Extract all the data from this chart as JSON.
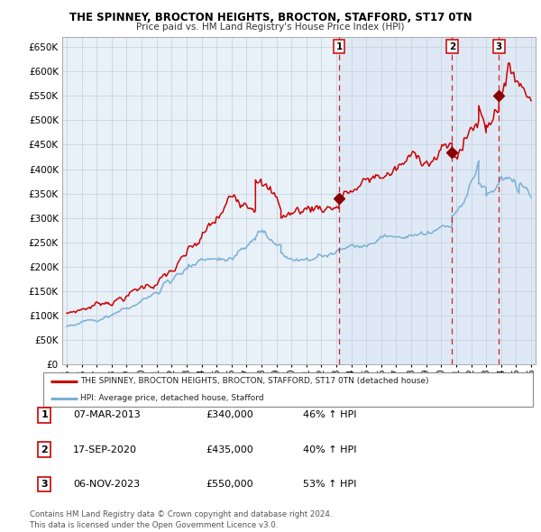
{
  "title": "THE SPINNEY, BROCTON HEIGHTS, BROCTON, STAFFORD, ST17 0TN",
  "subtitle": "Price paid vs. HM Land Registry's House Price Index (HPI)",
  "legend_line1": "THE SPINNEY, BROCTON HEIGHTS, BROCTON, STAFFORD, ST17 0TN (detached house)",
  "legend_line2": "HPI: Average price, detached house, Stafford",
  "sale_labels": [
    "1",
    "2",
    "3"
  ],
  "sale_dates": [
    2013.18,
    2020.72,
    2023.85
  ],
  "sale_prices": [
    340000,
    435000,
    550000
  ],
  "footer1": "Contains HM Land Registry data © Crown copyright and database right 2024.",
  "footer2": "This data is licensed under the Open Government Licence v3.0.",
  "red_color": "#cc0000",
  "blue_color": "#7ab0d4",
  "bg_color": "#e8f0f8",
  "grid_color": "#c8d4e0",
  "outer_bg": "#ffffff",
  "ylim": [
    0,
    670000
  ],
  "xlim": [
    1994.7,
    2026.3
  ],
  "yticks": [
    0,
    50000,
    100000,
    150000,
    200000,
    250000,
    300000,
    350000,
    400000,
    450000,
    500000,
    550000,
    600000,
    650000
  ],
  "xticks": [
    1995,
    1996,
    1997,
    1998,
    1999,
    2000,
    2001,
    2002,
    2003,
    2004,
    2005,
    2006,
    2007,
    2008,
    2009,
    2010,
    2011,
    2012,
    2013,
    2014,
    2015,
    2016,
    2017,
    2018,
    2019,
    2020,
    2021,
    2022,
    2023,
    2024,
    2025,
    2026
  ]
}
